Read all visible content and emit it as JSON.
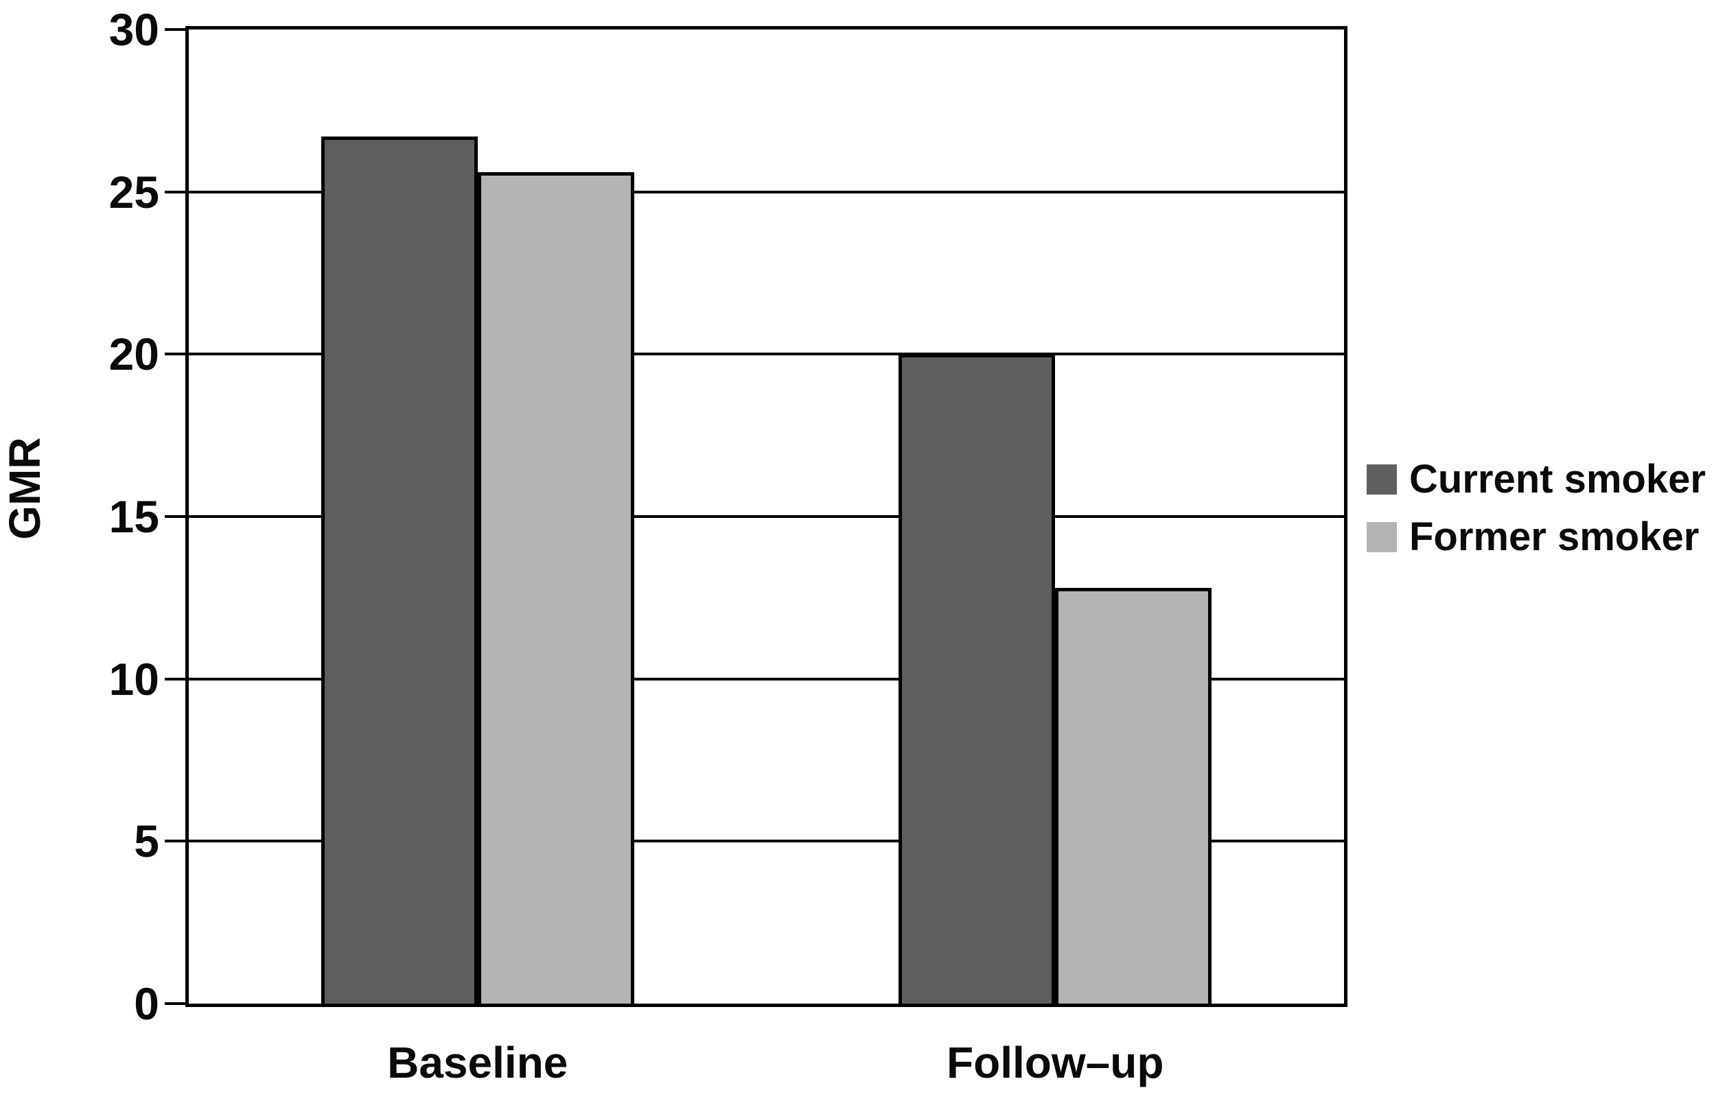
{
  "chart_data": {
    "type": "bar",
    "title": "",
    "ylabel": "GMR",
    "xlabel": "",
    "categories": [
      "Baseline",
      "Follow–up"
    ],
    "series": [
      {
        "name": "Current smoker",
        "color": "#5f5f61",
        "values": [
          26.7,
          20.0
        ]
      },
      {
        "name": "Former smoker",
        "color": "#b4b4b6",
        "values": [
          25.6,
          12.8
        ]
      }
    ],
    "ylim": [
      0,
      30
    ],
    "yticks": [
      0,
      5,
      10,
      15,
      20,
      25,
      30
    ],
    "grid": true,
    "legend_position": "right",
    "axis_color": "#000000",
    "plot_background": "#ffffff"
  }
}
